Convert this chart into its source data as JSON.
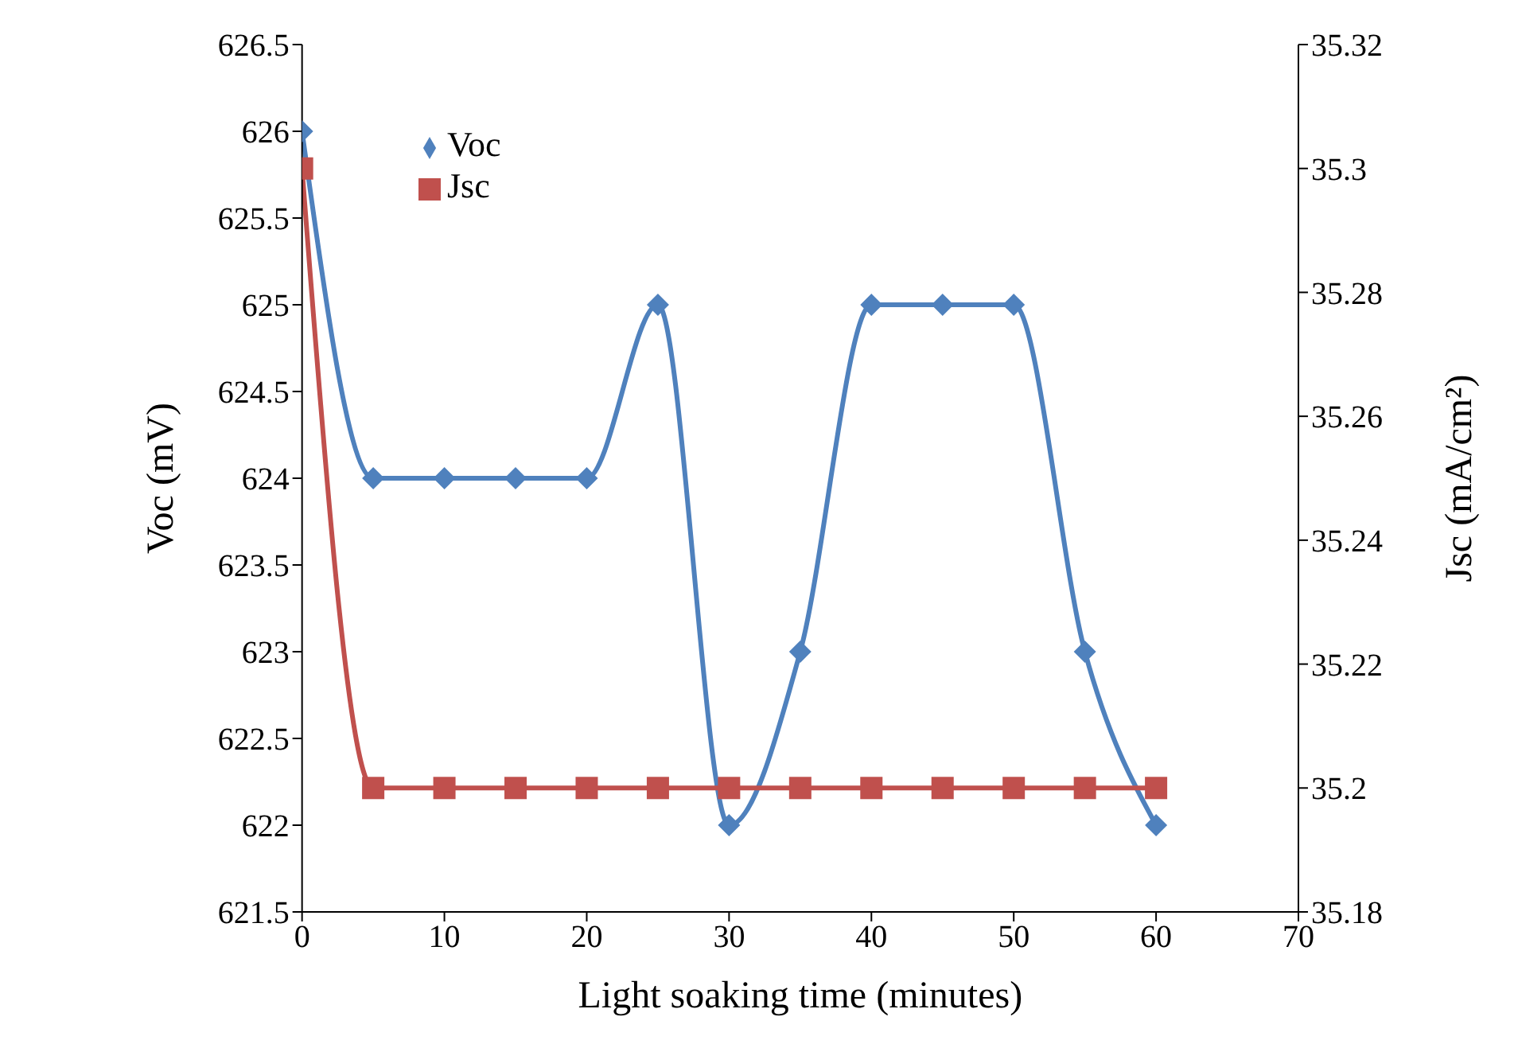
{
  "chart_data": {
    "type": "line",
    "xlabel": "Light soaking time (minutes)",
    "ylabel": "Voc (mV)",
    "y2label": "Jsc (mA/cm²)",
    "x": [
      0,
      5,
      10,
      15,
      20,
      25,
      30,
      35,
      40,
      45,
      50,
      55,
      60
    ],
    "series": [
      {
        "name": "Voc",
        "color": "#4f81bd",
        "marker": "diamond",
        "values": [
          626,
          624,
          624,
          624,
          624,
          625,
          622,
          623,
          625,
          625,
          625,
          623,
          622
        ]
      },
      {
        "name": "Jsc",
        "color": "#c0504d",
        "marker": "square",
        "axis": "y2",
        "values": [
          35.3,
          35.2,
          35.2,
          35.2,
          35.2,
          35.2,
          35.2,
          35.2,
          35.2,
          35.2,
          35.2,
          35.2,
          35.2
        ]
      }
    ],
    "xlim": [
      0,
      70
    ],
    "xticks": [
      0,
      10,
      20,
      30,
      40,
      50,
      60,
      70
    ],
    "ylim": [
      621.5,
      626.5
    ],
    "yticks": [
      621.5,
      622,
      622.5,
      623,
      623.5,
      624,
      624.5,
      625,
      625.5,
      626,
      626.5
    ],
    "y2lim": [
      35.18,
      35.32
    ],
    "y2ticks": [
      35.18,
      35.2,
      35.22,
      35.24,
      35.26,
      35.28,
      35.3,
      35.32
    ],
    "grid": false,
    "legend": "top left",
    "line_style": "solid"
  }
}
